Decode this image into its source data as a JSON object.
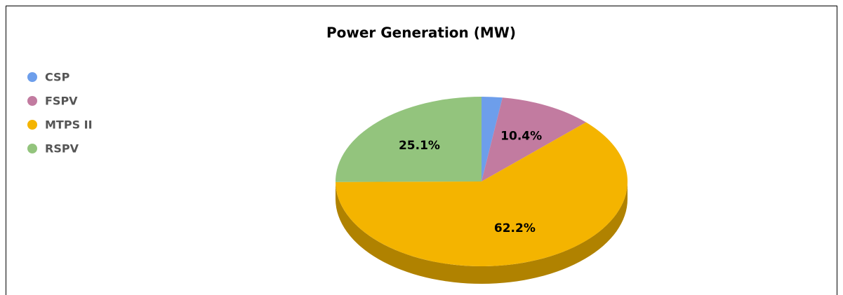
{
  "chart_data": {
    "type": "pie",
    "title": "Power Generation (MW)",
    "categories": [
      "CSP",
      "FSPV",
      "MTPS II",
      "RSPV"
    ],
    "values": [
      2.3,
      10.4,
      62.2,
      25.1
    ],
    "value_labels": [
      null,
      "10.4%",
      "62.2%",
      "25.1%"
    ],
    "colors": [
      "#6d9eeb",
      "#c27ba0",
      "#f4b400",
      "#93c47d"
    ],
    "legend": "left"
  }
}
